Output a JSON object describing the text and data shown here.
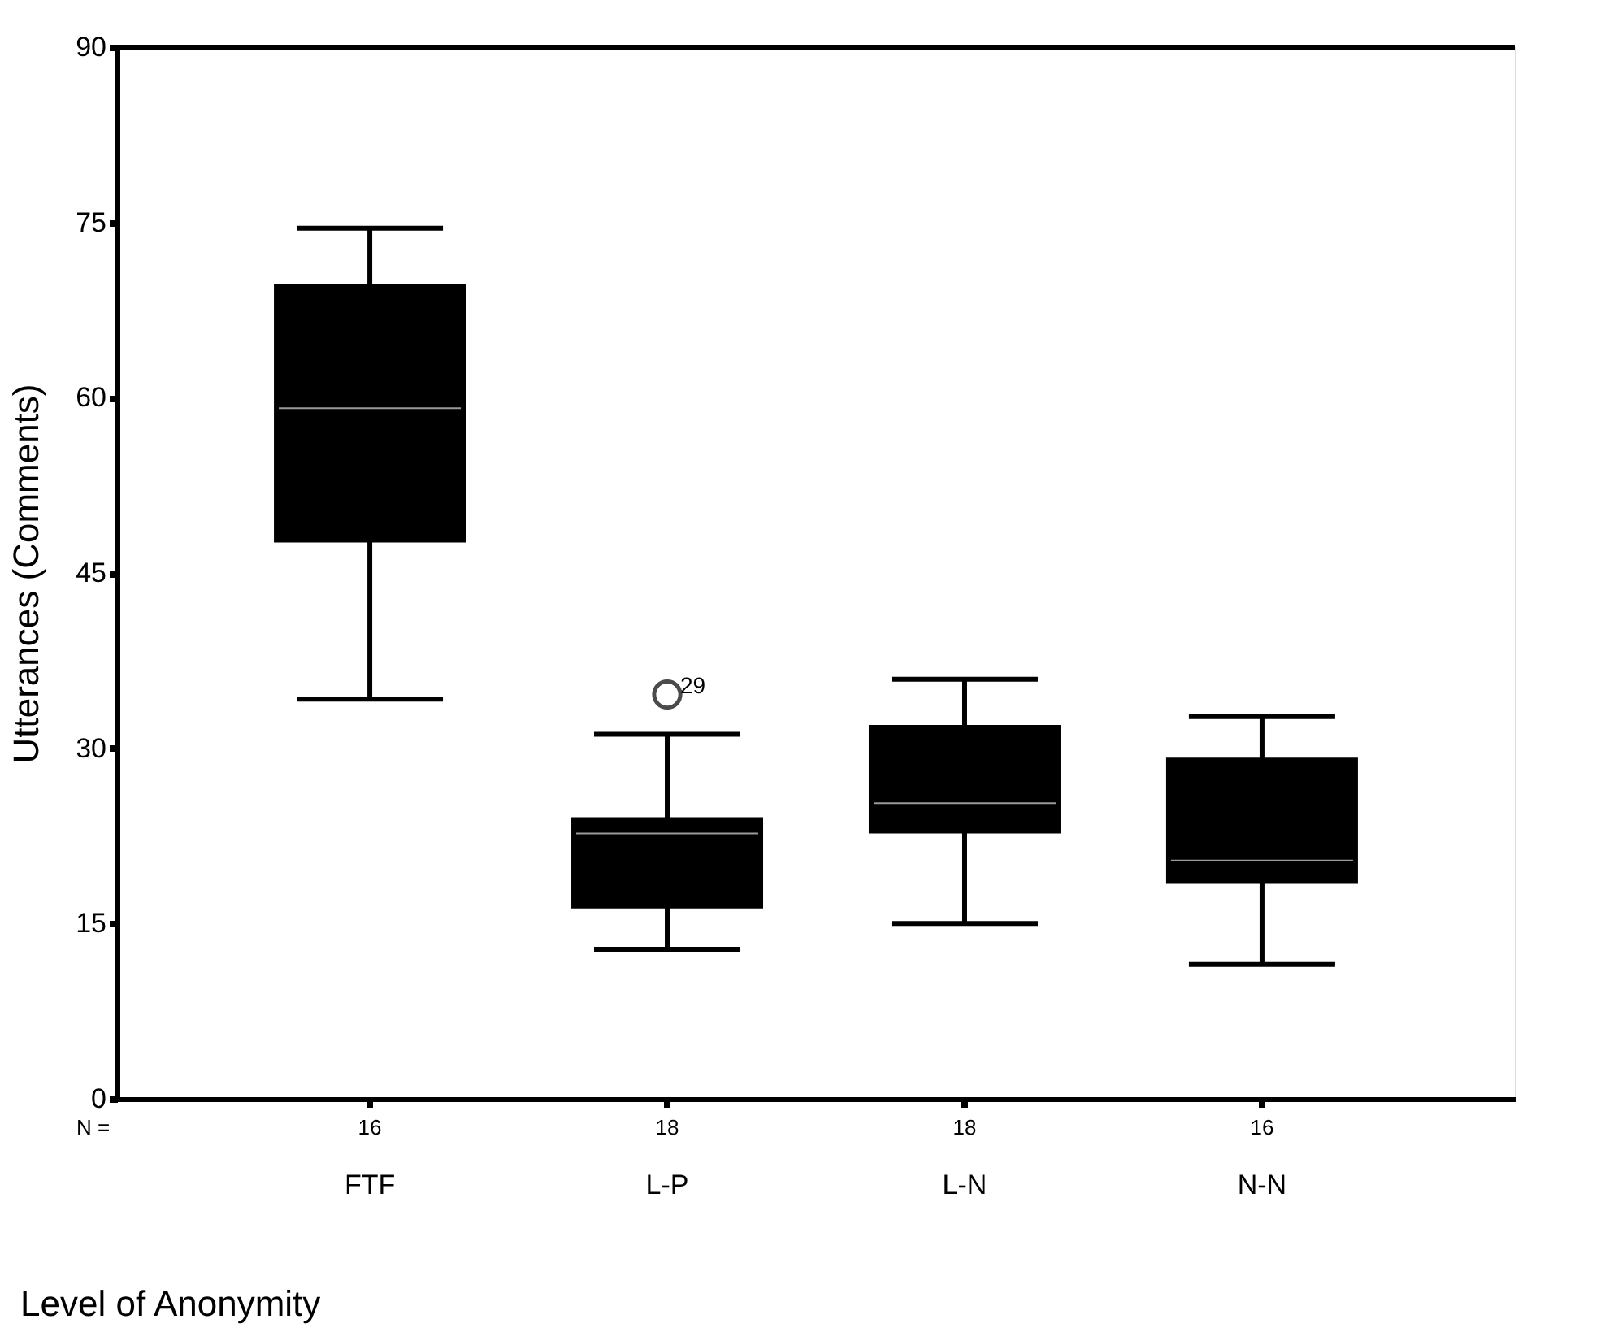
{
  "chart_data": {
    "type": "box",
    "categories": [
      "FTF",
      "L-P",
      "L-N",
      "N-N"
    ],
    "boxes": [
      {
        "low": 34.2,
        "q1": 47.6,
        "median": 59.1,
        "q3": 69.7,
        "high": 74.5
      },
      {
        "low": 12.8,
        "q1": 16.3,
        "median": 22.7,
        "q3": 24.1,
        "high": 31.2,
        "outliers": [
          34.6
        ]
      },
      {
        "low": 15.0,
        "q1": 22.7,
        "median": 25.3,
        "q3": 32.0,
        "high": 35.9
      },
      {
        "low": 11.5,
        "q1": 18.4,
        "median": 20.4,
        "q3": 29.2,
        "high": 32.7
      }
    ],
    "color": "#000000",
    "ylabel": "Utterances (Comments)",
    "xlabel": "Level of Anonymity",
    "ylim": [
      0,
      90
    ],
    "yticks": [
      0,
      15,
      30,
      45,
      60,
      75,
      90
    ],
    "annotations": [
      "N =",
      "16",
      "18",
      "18",
      "16",
      "29"
    ],
    "grid": false
  }
}
